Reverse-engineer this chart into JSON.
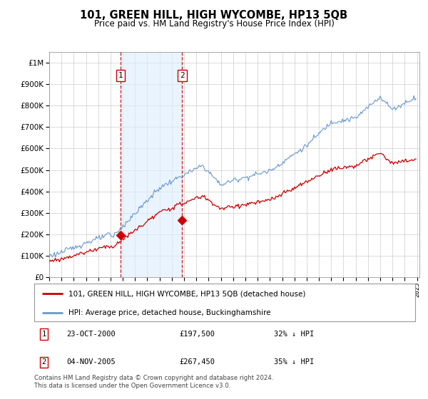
{
  "title": "101, GREEN HILL, HIGH WYCOMBE, HP13 5QB",
  "subtitle": "Price paid vs. HM Land Registry's House Price Index (HPI)",
  "legend_line1": "101, GREEN HILL, HIGH WYCOMBE, HP13 5QB (detached house)",
  "legend_line2": "HPI: Average price, detached house, Buckinghamshire",
  "footnote": "Contains HM Land Registry data © Crown copyright and database right 2024.\nThis data is licensed under the Open Government Licence v3.0.",
  "sale1_date": "23-OCT-2000",
  "sale1_price": "£197,500",
  "sale1_hpi": "32% ↓ HPI",
  "sale2_date": "04-NOV-2005",
  "sale2_price": "£267,450",
  "sale2_hpi": "35% ↓ HPI",
  "sale1_year": 2000.8,
  "sale2_year": 2005.85,
  "sale1_price_val": 197500,
  "sale2_price_val": 267450,
  "ylim_min": 0,
  "ylim_max": 1050000,
  "xlim_min": 1995.3,
  "xlim_max": 2025.2,
  "price_line_color": "#cc0000",
  "hpi_line_color": "#6699cc",
  "hpi_fill_color": "#ddeeff",
  "background_color": "#ffffff",
  "grid_color": "#cccccc",
  "sale_marker_color": "#cc0000",
  "dashed_line_color": "#cc0000",
  "highlight_fill": "#ddeeff",
  "yticks": [
    0,
    100000,
    200000,
    300000,
    400000,
    500000,
    600000,
    700000,
    800000,
    900000,
    1000000
  ]
}
